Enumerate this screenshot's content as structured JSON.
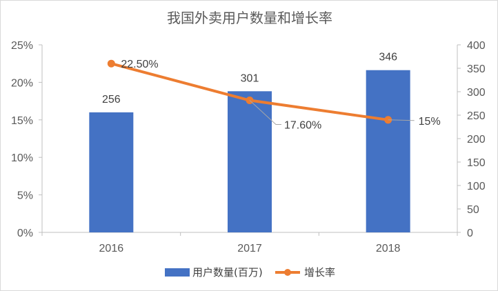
{
  "chart_data": {
    "type": "bar",
    "title": "我国外卖用户数量和增长率",
    "categories": [
      "2016",
      "2017",
      "2018"
    ],
    "series": [
      {
        "name": "用户数量(百万)",
        "type": "bar",
        "axis": "right",
        "values": [
          256,
          301,
          346
        ],
        "labels": [
          "256",
          "301",
          "346"
        ],
        "color": "#4472c4"
      },
      {
        "name": "增长率",
        "type": "line",
        "axis": "left",
        "values": [
          22.5,
          17.6,
          15
        ],
        "labels": [
          "22.50%",
          "17.60%",
          "15%"
        ],
        "color": "#ed7d31"
      }
    ],
    "y_left": {
      "ylim": [
        0,
        25
      ],
      "ticks": [
        "0%",
        "5%",
        "10%",
        "15%",
        "20%",
        "25%"
      ]
    },
    "y_right": {
      "ylim": [
        0,
        400
      ],
      "ticks": [
        "0",
        "50",
        "100",
        "150",
        "200",
        "250",
        "300",
        "350",
        "400"
      ]
    },
    "grid": false,
    "legend": "bottom"
  }
}
